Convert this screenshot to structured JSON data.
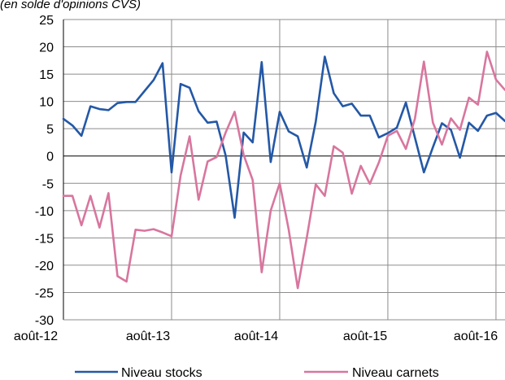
{
  "subtitle": "(en solde d'opinions CVS)",
  "chart_data": {
    "type": "line",
    "subtitle": "(en solde d'opinions CVS)",
    "ylim": [
      -30,
      25
    ],
    "y_ticks": [
      25,
      20,
      15,
      10,
      5,
      0,
      -5,
      -10,
      -15,
      -20,
      -25,
      -30
    ],
    "x_tick_labels": [
      "août-12",
      "août-13",
      "août-14",
      "août-15",
      "août-16"
    ],
    "grid": true,
    "legend_position": "bottom",
    "x": [
      "2012-08",
      "2012-09",
      "2012-10",
      "2012-11",
      "2012-12",
      "2013-01",
      "2013-02",
      "2013-03",
      "2013-04",
      "2013-05",
      "2013-06",
      "2013-07",
      "2013-08",
      "2013-09",
      "2013-10",
      "2013-11",
      "2013-12",
      "2014-01",
      "2014-02",
      "2014-03",
      "2014-04",
      "2014-05",
      "2014-06",
      "2014-07",
      "2014-08",
      "2014-09",
      "2014-10",
      "2014-11",
      "2014-12",
      "2015-01",
      "2015-02",
      "2015-03",
      "2015-04",
      "2015-05",
      "2015-06",
      "2015-07",
      "2015-08",
      "2015-09",
      "2015-10",
      "2015-11",
      "2015-12",
      "2016-01",
      "2016-02",
      "2016-03",
      "2016-04",
      "2016-05",
      "2016-06",
      "2016-07",
      "2016-08",
      "2016-09"
    ],
    "series": [
      {
        "name": "Niveau stocks",
        "color": "#2458a6",
        "values": [
          6.8,
          5.6,
          3.7,
          9.1,
          8.6,
          8.4,
          9.7,
          9.9,
          9.9,
          11.9,
          13.9,
          17.0,
          -3.0,
          13.2,
          12.5,
          8.2,
          6.1,
          6.3,
          0.1,
          -11.3,
          4.3,
          2.5,
          17.2,
          -1.1,
          8.1,
          4.5,
          3.6,
          -2.1,
          6.3,
          18.2,
          11.5,
          9.1,
          9.6,
          7.4,
          7.4,
          3.4,
          4.2,
          5.2,
          9.8,
          3.4,
          -3.0,
          1.6,
          6.0,
          4.8,
          -0.3,
          6.1,
          4.6,
          7.4,
          7.9,
          6.4
        ]
      },
      {
        "name": "Niveau carnets",
        "color": "#d8769e",
        "values": [
          -7.3,
          -7.3,
          -12.7,
          -7.3,
          -13.1,
          -6.8,
          -22.0,
          -23.0,
          -13.5,
          -13.7,
          -13.4,
          -14.0,
          -14.7,
          -3.6,
          3.6,
          -8.0,
          -1.0,
          -0.2,
          4.3,
          8.1,
          0.2,
          -4.4,
          -21.3,
          -10.0,
          -5.0,
          -13.5,
          -24.2,
          -15.0,
          -5.2,
          -7.3,
          1.8,
          0.6,
          -6.9,
          -1.8,
          -5.1,
          -1.2,
          3.7,
          4.6,
          1.3,
          6.8,
          17.3,
          6.1,
          2.1,
          6.9,
          4.8,
          10.7,
          9.4,
          19.1,
          14.0,
          12.1
        ]
      }
    ]
  }
}
